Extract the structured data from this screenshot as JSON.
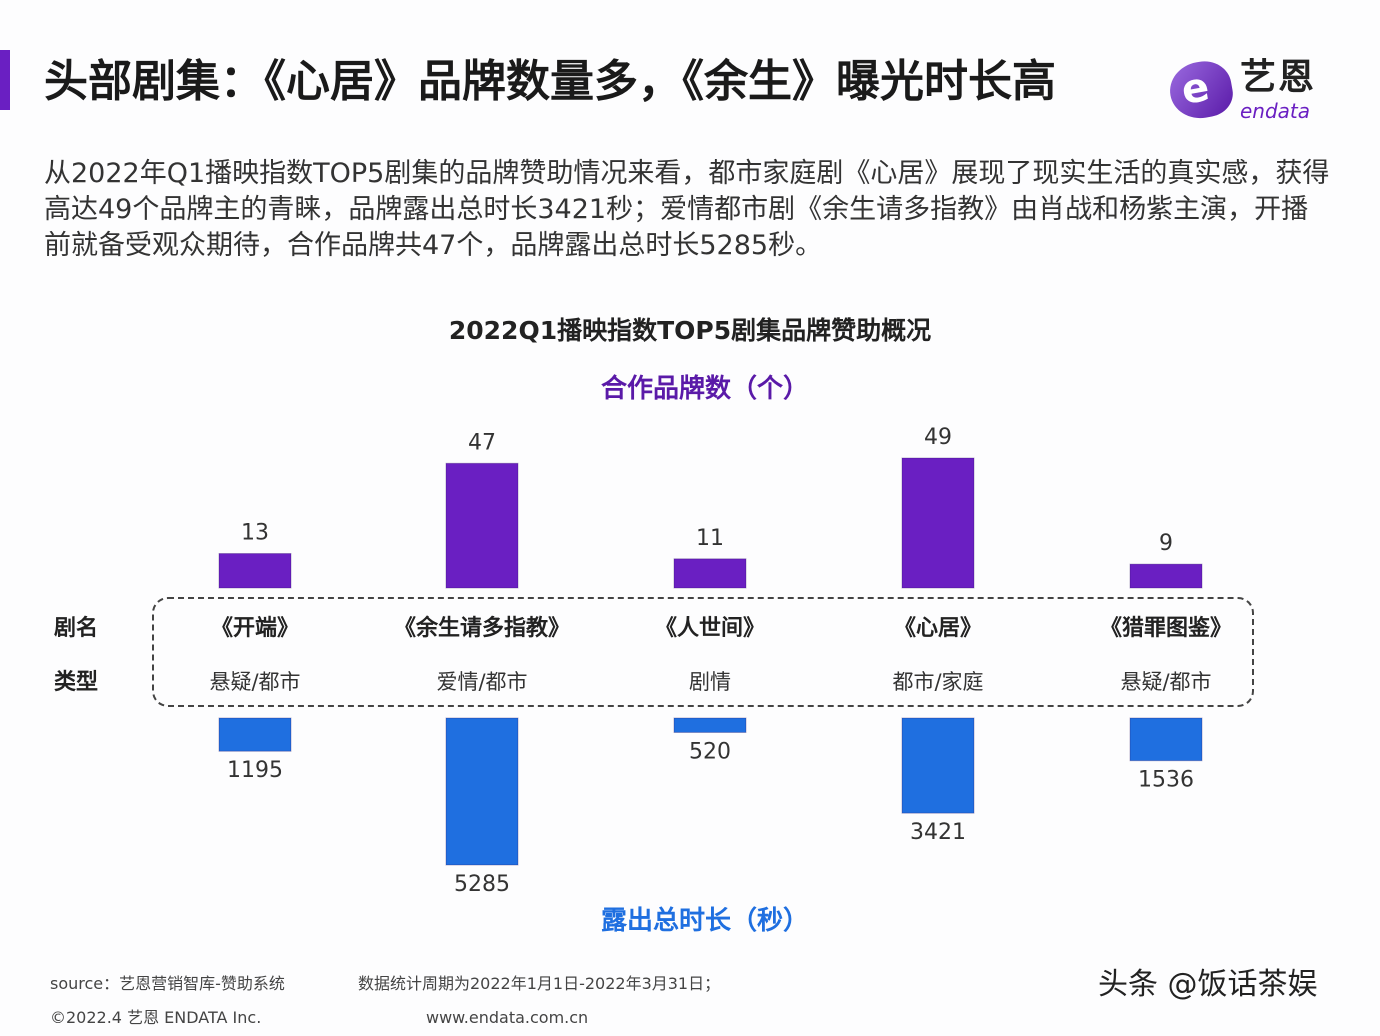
{
  "header": {
    "title": "头部剧集：《心居》品牌数量多，《余生》曝光时长高",
    "logo_cn": "艺恩",
    "logo_en": "endata"
  },
  "description": "从2022年Q1播映指数TOP5剧集的品牌赞助情况来看，都市家庭剧《心居》展现了现实生活的真实感，获得高达49个品牌主的青睐，品牌露出总时长3421秒；爱情都市剧《余生请多指教》由肖战和杨紫主演，开播前就备受观众期待，合作品牌共47个，品牌露出总时长5285秒。",
  "chart_data": {
    "type": "bar",
    "title": "2022Q1播映指数TOP5剧集品牌赞助概况",
    "row_labels": {
      "name": "剧名",
      "genre": "类型"
    },
    "categories": [
      "《开端》",
      "《余生请多指教》",
      "《人世间》",
      "《心居》",
      "《猎罪图鉴》"
    ],
    "genres": [
      "悬疑/都市",
      "爱情/都市",
      "剧情",
      "都市/家庭",
      "悬疑/都市"
    ],
    "series": [
      {
        "name": "合作品牌数（个）",
        "values": [
          13,
          47,
          11,
          49,
          9
        ],
        "color": "#6a1fc2",
        "direction": "up"
      },
      {
        "name": "露出总时长（秒）",
        "values": [
          1195,
          5285,
          520,
          3421,
          1536
        ],
        "color": "#1f6fe0",
        "direction": "down"
      }
    ]
  },
  "footer": {
    "source": "source：艺恩营销智库-赞助系统",
    "period": "数据统计周期为2022年1月1日-2022年3月31日；",
    "copyright": "©2022.4 艺恩 ENDATA Inc.",
    "url": "www.endata.com.cn"
  },
  "watermark": "头条 @饭话茶娱"
}
